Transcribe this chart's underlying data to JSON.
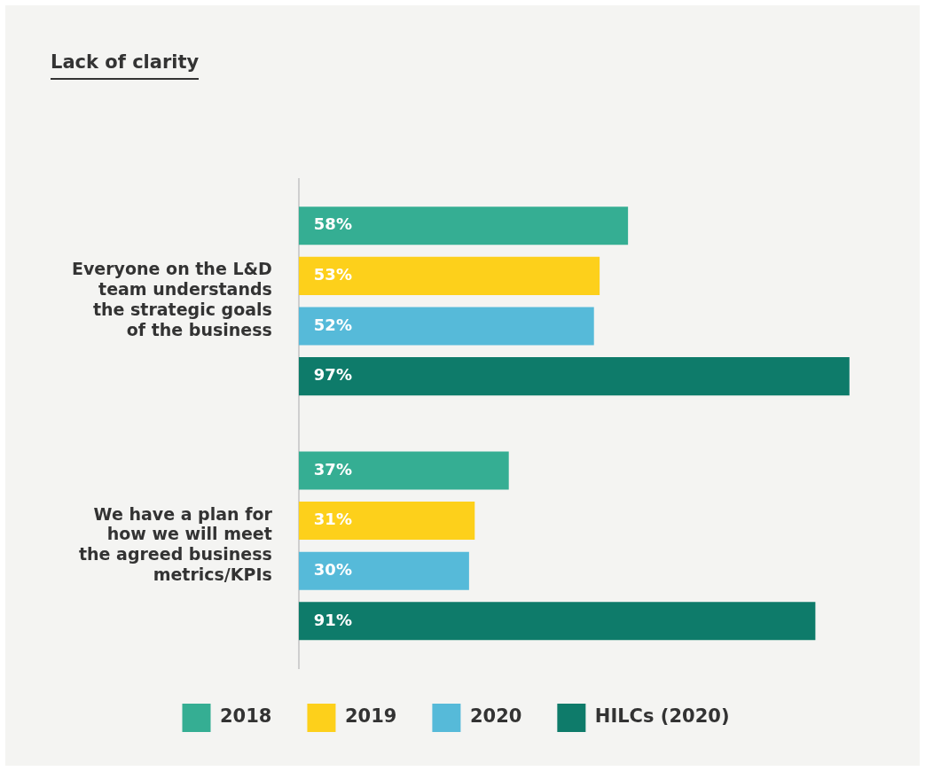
{
  "chart_data": {
    "type": "bar",
    "orientation": "horizontal",
    "title": "Lack of clarity",
    "categories": [
      "Everyone on the L&D team understands the strategic goals of the business",
      "We have a plan for how we will meet the agreed business metrics/KPIs"
    ],
    "series": [
      {
        "name": "2018",
        "color": "#35ae93",
        "values": [
          58,
          37
        ],
        "value_labels": [
          "58%",
          "37%"
        ]
      },
      {
        "name": "2019",
        "color": "#fdd01b",
        "values": [
          53,
          31
        ],
        "value_labels": [
          "53%",
          "31%"
        ]
      },
      {
        "name": "2020",
        "color": "#56bad9",
        "values": [
          52,
          30
        ],
        "value_labels": [
          "52%",
          "30%"
        ]
      },
      {
        "name": "HILCs (2020)",
        "color": "#0e7b6a",
        "values": [
          97,
          91
        ],
        "value_labels": [
          "97%",
          "91%"
        ]
      }
    ],
    "tick_labels": "y",
    "legend": "bottom"
  }
}
